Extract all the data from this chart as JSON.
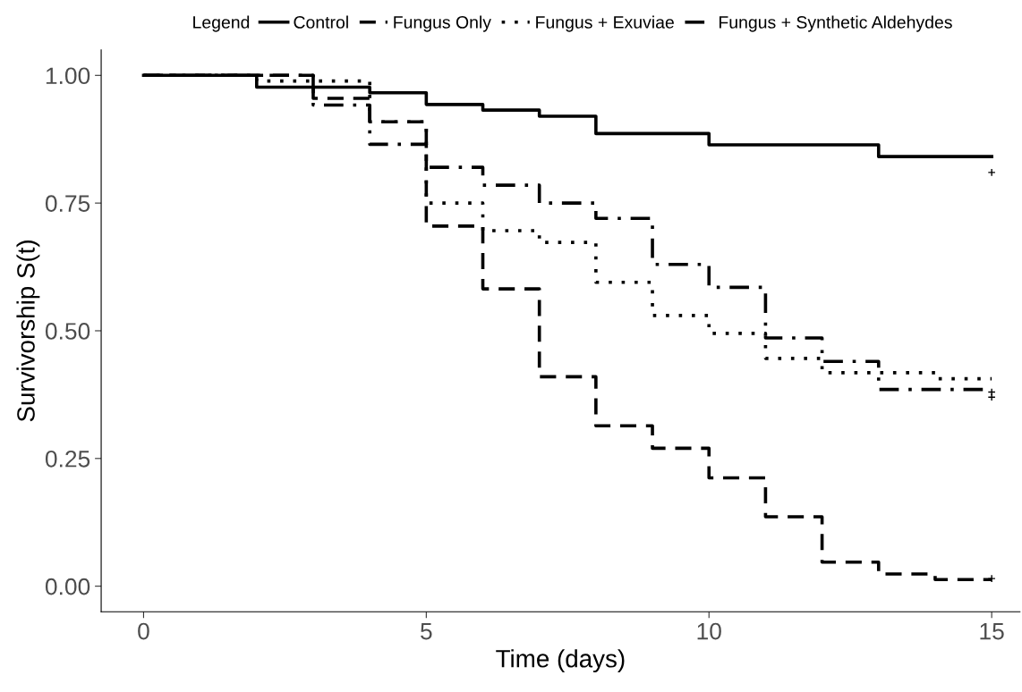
{
  "chart_data": {
    "type": "step",
    "xlabel": "Time (days)",
    "ylabel": "Survivorship S(t)",
    "legend_title": "Legend",
    "legend": "top",
    "xlim": [
      -0.75,
      15.5
    ],
    "ylim": [
      -0.05,
      1.05
    ],
    "xticks": [
      0,
      5,
      10,
      15
    ],
    "yticks": [
      {
        "value": 0,
        "label": "0.00"
      },
      {
        "value": 0.25,
        "label": "0.25"
      },
      {
        "value": 0.5,
        "label": "0.50"
      },
      {
        "value": 0.75,
        "label": "0.75"
      },
      {
        "value": 1,
        "label": "1.00"
      }
    ],
    "grid": false,
    "series": [
      {
        "name": "Control",
        "color": "#000000",
        "line_style": "solid",
        "x": [
          0,
          2,
          4,
          5,
          6,
          7,
          8,
          10,
          13,
          15
        ],
        "values": [
          1.0,
          0.977,
          0.966,
          0.943,
          0.932,
          0.92,
          0.886,
          0.864,
          0.841,
          0.841
        ]
      },
      {
        "name": "Fungus Only",
        "color": "#000000",
        "line_style": "dashed",
        "x": [
          0,
          3,
          4,
          5,
          6,
          7,
          8,
          9,
          10,
          11,
          12,
          13,
          14,
          15
        ],
        "values": [
          1.0,
          0.955,
          0.909,
          0.705,
          0.582,
          0.41,
          0.314,
          0.27,
          0.212,
          0.136,
          0.047,
          0.024,
          0.013,
          0.013
        ]
      },
      {
        "name": "Fungus + Exuviae",
        "color": "#000000",
        "line_style": "dotted",
        "x": [
          0,
          2,
          4,
          5,
          6,
          7,
          8,
          9,
          10,
          11,
          12,
          14,
          15
        ],
        "values": [
          1.0,
          0.989,
          0.909,
          0.75,
          0.696,
          0.673,
          0.595,
          0.53,
          0.495,
          0.446,
          0.418,
          0.406,
          0.406
        ]
      },
      {
        "name": "Fungus + Synthetic Aldehydes",
        "color": "#000000",
        "line_style": "dashdot",
        "x": [
          0,
          3,
          4,
          5,
          6,
          7,
          8,
          9,
          10,
          11,
          12,
          13,
          15
        ],
        "values": [
          1.0,
          0.942,
          0.865,
          0.82,
          0.785,
          0.75,
          0.72,
          0.63,
          0.585,
          0.486,
          0.44,
          0.385,
          0.385
        ]
      },
      {
        "type": "scatter",
        "marker": "cross",
        "color": "#000000",
        "x": [
          15,
          15,
          15,
          15
        ],
        "values": [
          0.81,
          0.015,
          0.38,
          0.37
        ]
      }
    ]
  }
}
